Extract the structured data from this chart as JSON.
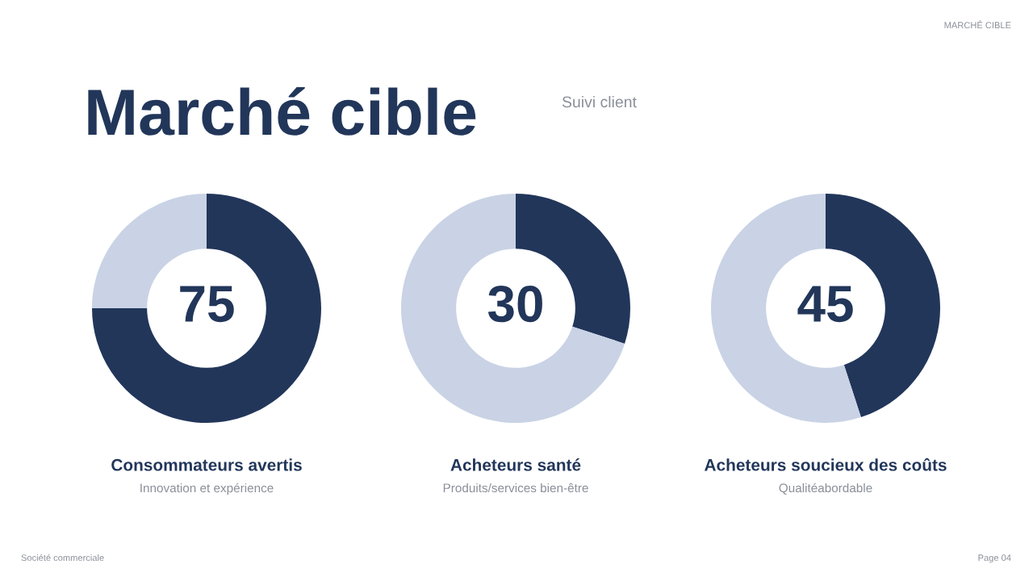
{
  "chart_data": [
    {
      "type": "donut",
      "title": "Consommateurs avertis",
      "subtitle": "Innovation et expérience",
      "categories": [
        null,
        null
      ],
      "values": [
        75,
        25
      ],
      "colors": [
        "#22365a",
        "#c9d3e5"
      ],
      "value_labels": [
        "75",
        null
      ],
      "annotations": [
        "Marché cible",
        "Suivi client",
        "MARCHÉ CIBLE",
        "Société commerciale",
        "Page 04"
      ]
    },
    {
      "type": "donut",
      "title": "Acheteurs santé",
      "subtitle": "Produits/services bien-être",
      "categories": [
        null,
        null
      ],
      "values": [
        30,
        70
      ],
      "colors": [
        "#22365a",
        "#c9d3e5"
      ],
      "value_labels": [
        "30",
        null
      ]
    },
    {
      "type": "donut",
      "title": "Acheteurs soucieux des coûts",
      "subtitle": "Qualitéabordable",
      "categories": [
        null,
        null
      ],
      "values": [
        45,
        55
      ],
      "colors": [
        "#22365a",
        "#c9d3e5"
      ],
      "value_labels": [
        "45",
        null
      ]
    }
  ]
}
